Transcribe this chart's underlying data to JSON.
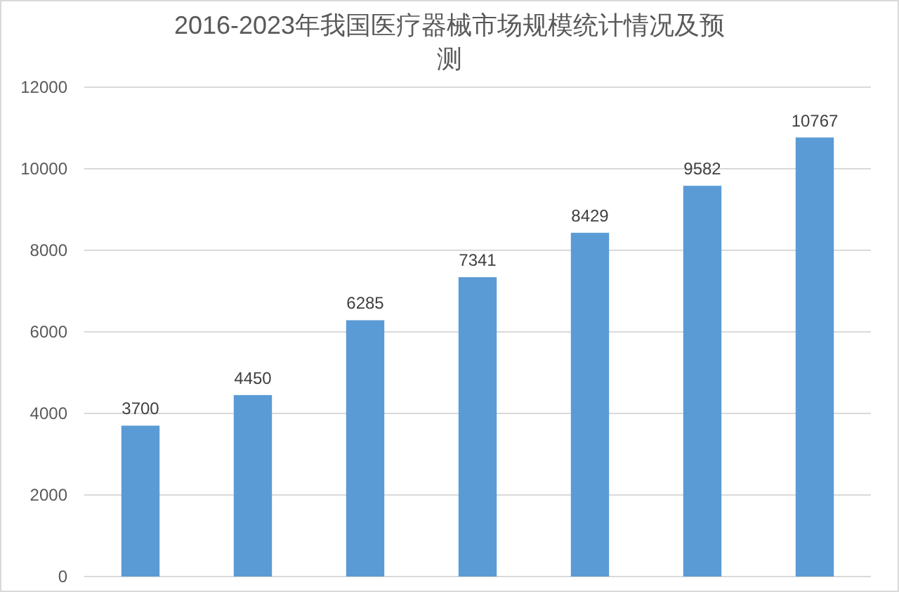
{
  "chart_data": {
    "type": "bar",
    "title": "2016-2023年我国医疗器械市场规模统计情况及预测",
    "categories": [
      null,
      null,
      null,
      null,
      null,
      null,
      null
    ],
    "values": [
      3700,
      4450,
      6285,
      7341,
      8429,
      9582,
      10767
    ],
    "color": "#5b9bd5",
    "data_labels": true,
    "ylim": [
      0,
      12000
    ],
    "yticks": [
      0,
      2000,
      4000,
      6000,
      8000,
      10000,
      12000
    ],
    "grid": "y"
  }
}
